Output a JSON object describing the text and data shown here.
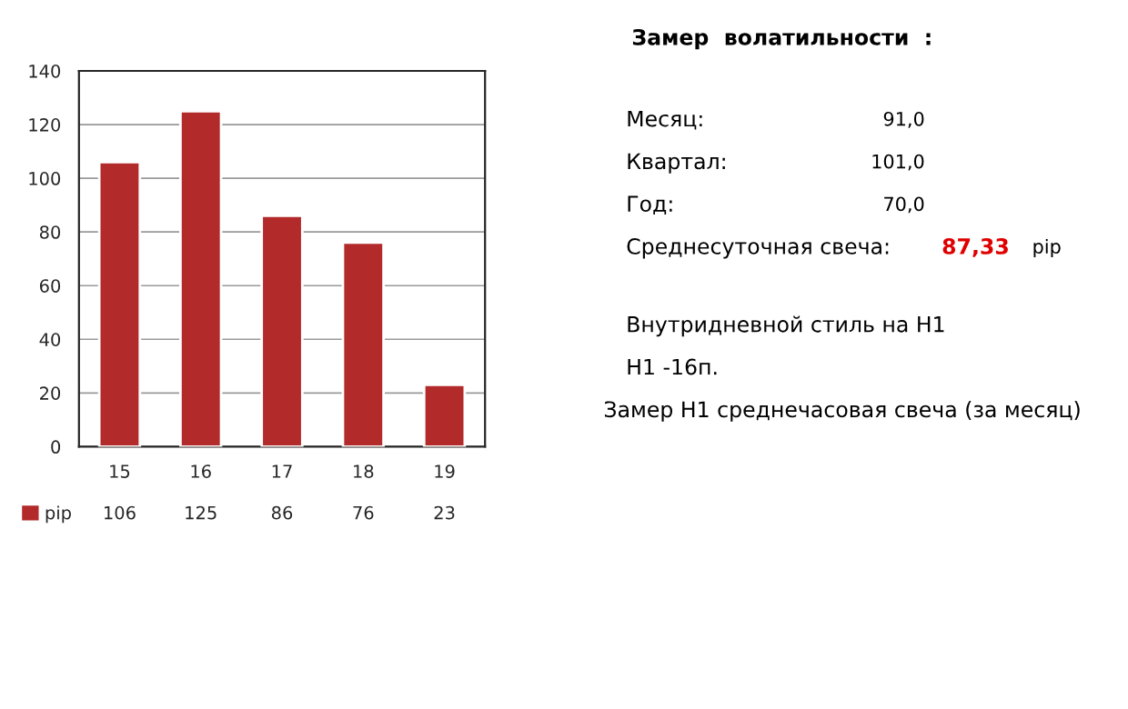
{
  "chart_data": {
    "type": "bar",
    "categories": [
      "15",
      "16",
      "17",
      "18",
      "19"
    ],
    "series": [
      {
        "name": "pip",
        "color": "#b22a2a",
        "values": [
          106,
          125,
          86,
          76,
          23
        ]
      }
    ],
    "ylim": [
      0,
      140
    ],
    "yticks": [
      0,
      20,
      40,
      60,
      80,
      100,
      120,
      140
    ],
    "grid": "y",
    "legend": "bottom",
    "data_labels": true,
    "annotations": [
      "Замер  волатильности  :",
      "Месяц:",
      "91,0",
      "Квартал:",
      "101,0",
      "Год:",
      "70,0",
      "Среднесуточная свеча:",
      "87,33",
      "pip",
      "Внутридневной стиль на H1",
      "H1 -16п.",
      "Замер H1 среднечасовая свеча (за месяц)"
    ]
  }
}
